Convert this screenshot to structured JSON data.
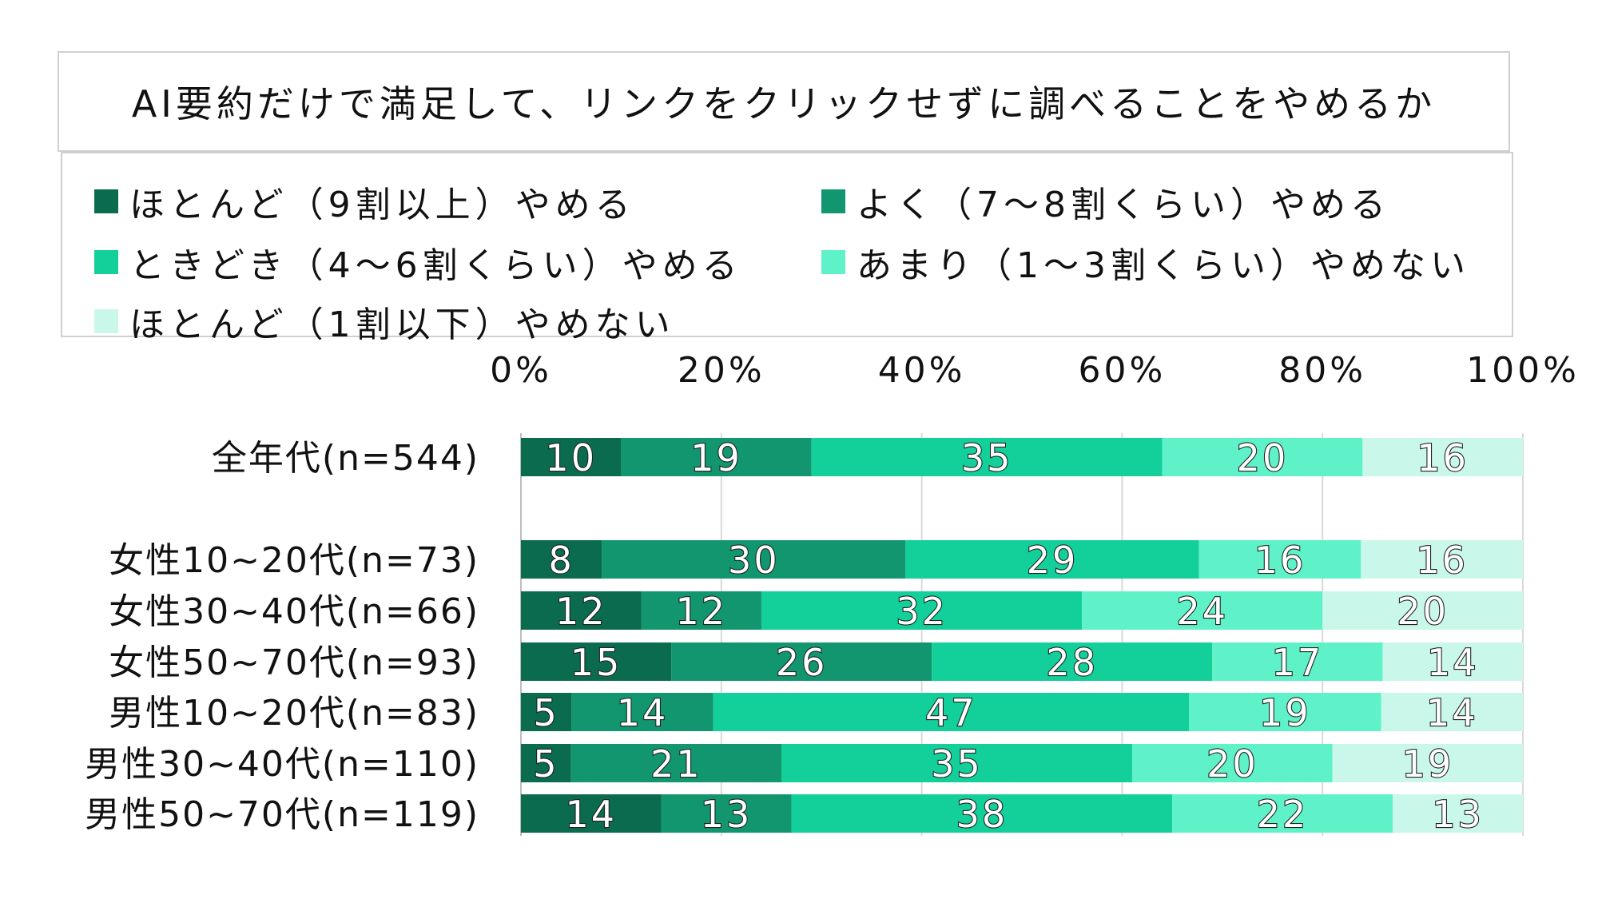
{
  "chart_data": {
    "type": "bar",
    "orientation": "horizontal",
    "stacked": "percent",
    "title": "AI要約だけで満足して、リンクをクリックせずに調べることをやめるか",
    "xlim": [
      0,
      100
    ],
    "x_ticks": [
      "0%",
      "20%",
      "40%",
      "60%",
      "80%",
      "100%"
    ],
    "grid": true,
    "legend_position": "top",
    "categories": [
      "全年代(n=544)",
      "女性10~20代(n=73)",
      "女性30~40代(n=66)",
      "女性50~70代(n=93)",
      "男性10~20代(n=83)",
      "男性30~40代(n=110)",
      "男性50~70代(n=119)"
    ],
    "series": [
      {
        "name": "ほとんど（9割以上）やめる",
        "color": "#0b6b4f",
        "values": [
          10,
          8,
          12,
          15,
          5,
          5,
          14
        ]
      },
      {
        "name": "よく（7～8割くらい）やめる",
        "color": "#11966f",
        "values": [
          19,
          30,
          12,
          26,
          14,
          21,
          13
        ]
      },
      {
        "name": "ときどき（4～6割くらい）やめる",
        "color": "#13cf9a",
        "values": [
          35,
          29,
          32,
          28,
          47,
          35,
          38
        ]
      },
      {
        "name": "あまり（1～3割くらい）やめない",
        "color": "#5ff2c8",
        "values": [
          20,
          16,
          24,
          17,
          19,
          20,
          22
        ]
      },
      {
        "name": "ほとんど（1割以下）やめない",
        "color": "#c9f8ea",
        "values": [
          16,
          16,
          20,
          14,
          14,
          19,
          13
        ]
      }
    ]
  }
}
